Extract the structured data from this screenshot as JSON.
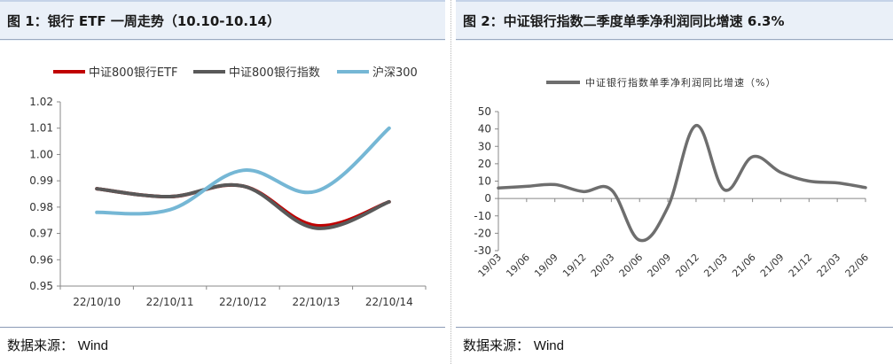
{
  "left": {
    "title": "图 1：银行 ETF 一周走势（10.10-10.14）",
    "source_label": "数据来源：",
    "source_value": "Wind"
  },
  "right": {
    "title": "图 2：中证银行指数二季度单季净利润同比增速 6.3%",
    "source_label": "数据来源：",
    "source_value": "Wind"
  },
  "chart_data": [
    {
      "type": "line",
      "title": "",
      "xlabel": "",
      "ylabel": "",
      "categories": [
        "22/10/10",
        "22/10/11",
        "22/10/12",
        "22/10/13",
        "22/10/14"
      ],
      "yticks": [
        "0.95",
        "0.96",
        "0.97",
        "0.98",
        "0.99",
        "1.00",
        "1.01",
        "1.02"
      ],
      "ylim": [
        0.95,
        1.02
      ],
      "grid": false,
      "legend": "top",
      "series": [
        {
          "name": "中证800银行ETF",
          "color": "#c00000",
          "values": [
            0.987,
            0.984,
            0.988,
            0.973,
            0.982
          ]
        },
        {
          "name": "中证800银行指数",
          "color": "#595959",
          "values": [
            0.987,
            0.984,
            0.988,
            0.972,
            0.982
          ]
        },
        {
          "name": "沪深300",
          "color": "#75b7d5",
          "values": [
            0.978,
            0.979,
            0.994,
            0.986,
            1.01
          ]
        }
      ]
    },
    {
      "type": "line",
      "title": "",
      "xlabel": "",
      "ylabel": "",
      "categories": [
        "19/03",
        "19/06",
        "19/09",
        "19/12",
        "20/03",
        "20/06",
        "20/09",
        "20/12",
        "21/03",
        "21/06",
        "21/09",
        "21/12",
        "22/03",
        "22/06"
      ],
      "yticks": [
        "50",
        "40",
        "30",
        "20",
        "10",
        "0",
        "-10",
        "-20",
        "-30"
      ],
      "ylim": [
        -30,
        50
      ],
      "grid": false,
      "legend": "top",
      "series": [
        {
          "name": "中证银行指数单季净利润同比增速（%）",
          "color": "#6e6e6e",
          "values": [
            6,
            7,
            8,
            4,
            5,
            -24,
            -5,
            42,
            5,
            24,
            15,
            10,
            9,
            6.3
          ]
        }
      ]
    }
  ]
}
